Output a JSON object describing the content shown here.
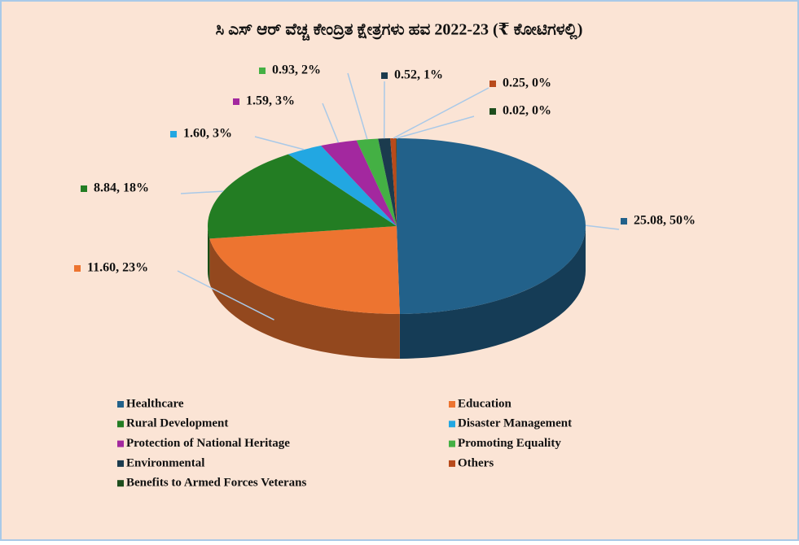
{
  "chart_data": {
    "type": "pie",
    "title": "ಸಿ ಎಸ್ ಆರ್ ವೆಚ್ಚ ಕೇಂದ್ರಿತ ಕ್ಷೇತ್ರಗಳು ಹವ 2022-23 (₹ ಕೋಟಿಗಳಲ್ಲಿ)",
    "categories": [
      "Healthcare",
      "Education",
      "Rural Development",
      "Disaster Management",
      "Protection of National Heritage",
      "Promoting Equality",
      "Environmental",
      "Others",
      "Benefits to Armed Forces Veterans"
    ],
    "values": [
      25.08,
      11.6,
      8.84,
      1.6,
      1.59,
      0.93,
      0.52,
      0.25,
      0.02
    ],
    "value_labels": [
      "25.08, 50%",
      "11.60, 23%",
      "8.84, 18%",
      "1.60, 3%",
      "1.59, 3%",
      "0.93, 2%",
      "0.52, 1%",
      "0.25, 0%",
      "0.02, 0%"
    ],
    "colors": [
      "#22618a",
      "#ed7430",
      "#237d23",
      "#22a7e2",
      "#a3289f",
      "#44b044",
      "#1b3b4e",
      "#b84a1b",
      "#1d4d1d"
    ],
    "legend": "bottom"
  }
}
